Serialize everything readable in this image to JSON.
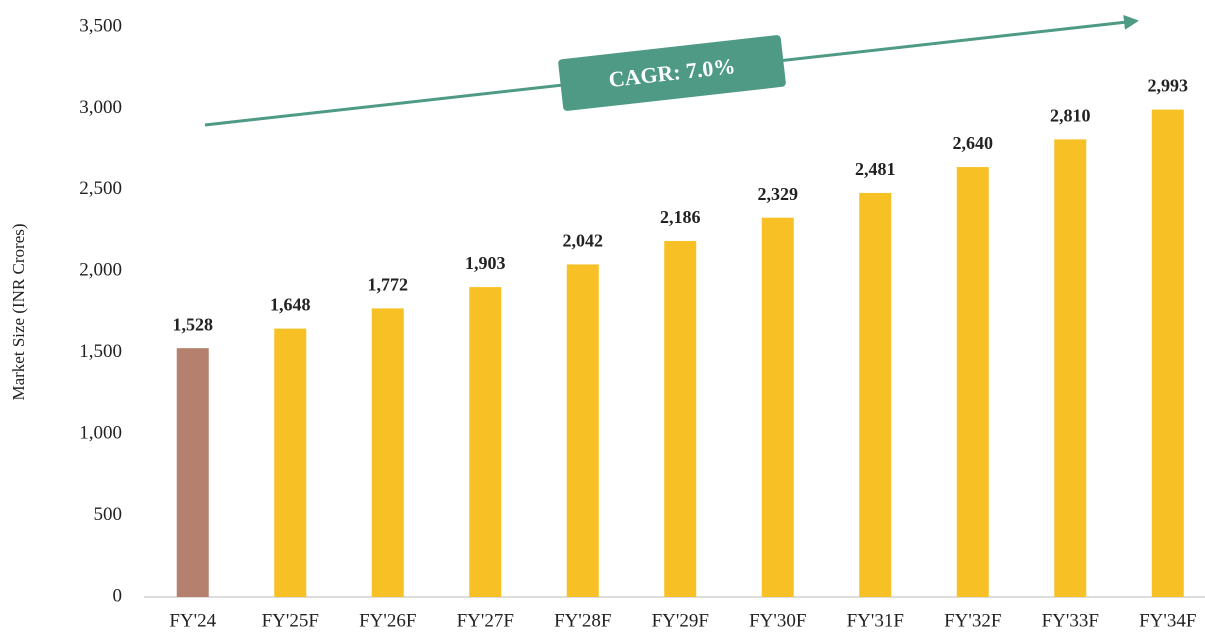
{
  "chart_data": {
    "type": "bar",
    "y_axis_label": "Market Size (INR Crores)",
    "annotation": "CAGR: 7.0%",
    "categories": [
      "FY'24",
      "FY'25F",
      "FY'26F",
      "FY'27F",
      "FY'28F",
      "FY'29F",
      "FY'30F",
      "FY'31F",
      "FY'32F",
      "FY'33F",
      "FY'34F"
    ],
    "values": [
      1528,
      1648,
      1772,
      1903,
      2042,
      2186,
      2329,
      2481,
      2640,
      2810,
      2993
    ],
    "value_labels": [
      "1,528",
      "1,648",
      "1,772",
      "1,903",
      "2,042",
      "2,186",
      "2,329",
      "2,481",
      "2,640",
      "2,810",
      "2,993"
    ],
    "colors": [
      "#b5806e",
      "#f7c125",
      "#f7c125",
      "#f7c125",
      "#f7c125",
      "#f7c125",
      "#f7c125",
      "#f7c125",
      "#f7c125",
      "#f7c125",
      "#f7c125"
    ],
    "ylim": [
      0,
      3500
    ],
    "yticks": [
      0,
      500,
      {
        "value": 1000,
        "label": "1,000"
      },
      {
        "value": 1500,
        "label": "1,500"
      },
      {
        "value": 2000,
        "label": "2,000"
      },
      {
        "value": 2500,
        "label": "2,500"
      },
      {
        "value": 3000,
        "label": "3,000"
      },
      {
        "value": 3500,
        "label": "3,500"
      }
    ],
    "grid": false
  }
}
